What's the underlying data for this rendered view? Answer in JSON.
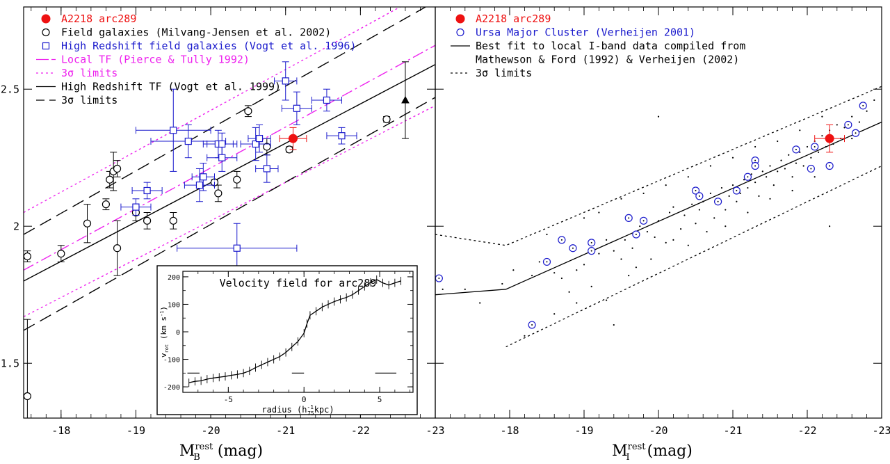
{
  "colors": {
    "black": "#000000",
    "red": "#ee1111",
    "blue": "#1a1acc",
    "magenta": "#ee22ee",
    "background": "#ffffff"
  },
  "chart_data": [
    {
      "id": "left",
      "type": "scatter",
      "xlabel_main": "M",
      "xlabel_sub": "B",
      "xlabel_sup": "rest",
      "xlabel_tail": " (mag)",
      "xlim": [
        -17.5,
        -23.0
      ],
      "ylim": [
        1.3,
        2.8
      ],
      "xticks": [
        "-18",
        "-19",
        "-20",
        "-21",
        "-22",
        "-23"
      ],
      "yticks": [
        "1.5",
        "2",
        "2.5"
      ],
      "legend_position": "top-left",
      "legend": [
        {
          "key": "arc",
          "label": "A2218 arc289",
          "marker": "filled-circle",
          "color": "#ee1111"
        },
        {
          "key": "field",
          "label": "Field galaxies (Milvang-Jensen et al. 2002)",
          "marker": "open-circle",
          "color": "#000000"
        },
        {
          "key": "hiz",
          "label": "High Redshift field galaxies (Vogt et al. 1996)",
          "marker": "open-square",
          "color": "#1a1acc"
        },
        {
          "key": "localtf",
          "label": "Local TF (Pierce & Tully 1992)",
          "marker": "long-dash",
          "color": "#ee22ee"
        },
        {
          "key": "localtf3",
          "label": "3σ limits",
          "marker": "dotted",
          "color": "#ee22ee"
        },
        {
          "key": "hiztf",
          "label": "High Redshift TF (Vogt et al. 1999)",
          "marker": "solid",
          "color": "#000000"
        },
        {
          "key": "hiztf3",
          "label": "3σ limits",
          "marker": "dashed",
          "color": "#000000"
        }
      ],
      "lines": [
        {
          "name": "Local TF (Pierce & Tully 1992)",
          "style": "longdash",
          "color": "#ee22ee",
          "x": [
            -17.5,
            -23.0
          ],
          "y": [
            1.84,
            2.66
          ]
        },
        {
          "name": "Local TF 3σ upper",
          "style": "dotted",
          "color": "#ee22ee",
          "x": [
            -17.5,
            -23.0
          ],
          "y": [
            2.05,
            2.87
          ]
        },
        {
          "name": "Local TF 3σ lower",
          "style": "dotted",
          "color": "#ee22ee",
          "x": [
            -17.5,
            -23.0
          ],
          "y": [
            1.67,
            2.44
          ]
        },
        {
          "name": "High Redshift TF (Vogt et al. 1999)",
          "style": "solid",
          "color": "#000000",
          "x": [
            -17.5,
            -23.0
          ],
          "y": [
            1.8,
            2.59
          ]
        },
        {
          "name": "High Redshift TF 3σ upper",
          "style": "dashed",
          "color": "#000000",
          "x": [
            -17.5,
            -23.0
          ],
          "y": [
            1.97,
            2.82
          ]
        },
        {
          "name": "High Redshift TF 3σ lower",
          "style": "dashed",
          "color": "#000000",
          "x": [
            -17.5,
            -23.0
          ],
          "y": [
            1.62,
            2.47
          ]
        }
      ],
      "series": [
        {
          "key": "field",
          "marker": "open-circle",
          "color": "#000000",
          "points": [
            {
              "x": -17.55,
              "y": 1.38,
              "ey": 0.28
            },
            {
              "x": -17.55,
              "y": 1.89,
              "ey": 0.02
            },
            {
              "x": -18.0,
              "y": 1.9,
              "ey": 0.03
            },
            {
              "x": -18.35,
              "y": 2.01,
              "ey": 0.07
            },
            {
              "x": -18.65,
              "y": 2.17,
              "ey": 0.03
            },
            {
              "x": -18.7,
              "y": 2.2,
              "ey": 0.07
            },
            {
              "x": -18.75,
              "y": 2.21,
              "ey": 0.03
            },
            {
              "x": -18.6,
              "y": 2.08,
              "ey": 0.02
            },
            {
              "x": -18.75,
              "y": 1.92,
              "ey": 0.1
            },
            {
              "x": -19.0,
              "y": 2.05,
              "ey": 0.03
            },
            {
              "x": -19.15,
              "y": 2.02,
              "ey": 0.03
            },
            {
              "x": -19.5,
              "y": 2.02,
              "ey": 0.03
            },
            {
              "x": -20.05,
              "y": 2.16,
              "ey": 0.01
            },
            {
              "x": -20.1,
              "y": 2.12,
              "ey": 0.03
            },
            {
              "x": -20.35,
              "y": 2.17,
              "ey": 0.03
            },
            {
              "x": -20.5,
              "y": 2.42,
              "ey": 0.02
            },
            {
              "x": -20.75,
              "y": 2.29,
              "ey": 0.03
            },
            {
              "x": -21.05,
              "y": 2.28,
              "ey": 0.01
            },
            {
              "x": -22.35,
              "y": 2.39,
              "ey": 0.01
            }
          ]
        },
        {
          "key": "field-triangle",
          "marker": "open-triangle",
          "color": "#000000",
          "points": [
            {
              "x": -22.6,
              "y": 2.46,
              "ey": 0.14
            }
          ]
        },
        {
          "key": "hiz",
          "marker": "open-square",
          "color": "#1a1acc",
          "points": [
            {
              "x": -19.0,
              "y": 2.07,
              "ex": 0.2,
              "ey": 0.03
            },
            {
              "x": -19.15,
              "y": 2.13,
              "ex": 0.2,
              "ey": 0.03
            },
            {
              "x": -19.5,
              "y": 2.35,
              "ex": 0.5,
              "ey": 0.15
            },
            {
              "x": -19.7,
              "y": 2.31,
              "ex": 0.5,
              "ey": 0.06
            },
            {
              "x": -19.85,
              "y": 2.15,
              "ex": 0.2,
              "ey": 0.06
            },
            {
              "x": -19.9,
              "y": 2.18,
              "ex": 0.15,
              "ey": 0.05
            },
            {
              "x": -20.1,
              "y": 2.3,
              "ex": 0.2,
              "ey": 0.05
            },
            {
              "x": -20.15,
              "y": 2.25,
              "ex": 0.2,
              "ey": 0.05
            },
            {
              "x": -20.15,
              "y": 2.3,
              "ex": 0.2,
              "ey": 0.04
            },
            {
              "x": -20.6,
              "y": 2.3,
              "ex": 0.2,
              "ey": 0.06
            },
            {
              "x": -20.65,
              "y": 2.32,
              "ex": 0.15,
              "ey": 0.05
            },
            {
              "x": -20.75,
              "y": 2.21,
              "ex": 0.15,
              "ey": 0.05
            },
            {
              "x": -21.0,
              "y": 2.53,
              "ex": 0.15,
              "ey": 0.07
            },
            {
              "x": -21.15,
              "y": 2.43,
              "ex": 0.2,
              "ey": 0.06
            },
            {
              "x": -21.55,
              "y": 2.46,
              "ex": 0.2,
              "ey": 0.04
            },
            {
              "x": -21.75,
              "y": 2.33,
              "ex": 0.2,
              "ey": 0.03
            },
            {
              "x": -20.35,
              "y": 1.92,
              "ex": 0.8,
              "ey": 0.09
            }
          ]
        },
        {
          "key": "arc",
          "marker": "filled-circle",
          "color": "#ee1111",
          "points": [
            {
              "x": -21.1,
              "y": 2.32,
              "ex": 0.18,
              "ey": 0.04
            }
          ]
        }
      ]
    },
    {
      "id": "right",
      "type": "scatter",
      "xlabel_main": "M",
      "xlabel_sub": "I",
      "xlabel_sup": "rest",
      "xlabel_tail": " (mag)",
      "xlim": [
        -17.0,
        -23.0
      ],
      "ylim": [
        1.3,
        2.8
      ],
      "xticks": [
        "-18",
        "-19",
        "-20",
        "-21",
        "-22",
        "-23"
      ],
      "legend_position": "top-left",
      "legend": [
        {
          "key": "arc",
          "label": "A2218 arc289",
          "marker": "filled-circle",
          "color": "#ee1111"
        },
        {
          "key": "uma",
          "label": "Ursa Major Cluster (Verheijen 2001)",
          "marker": "open-circle",
          "color": "#1a1acc"
        },
        {
          "key": "fit",
          "label": "Best fit to local I-band data compiled from",
          "marker": "solid",
          "color": "#000000"
        },
        {
          "key": "fit2",
          "label": "Mathewson & Ford (1992) & Verheijen (2002)",
          "marker": "none",
          "color": "#000000"
        },
        {
          "key": "lim",
          "label": "3σ limits",
          "marker": "dotted",
          "color": "#000000"
        }
      ],
      "lines": [
        {
          "name": "Best fit to local I-band data",
          "style": "solid",
          "color": "#000000",
          "x": [
            -17.0,
            -17.95,
            -23.0
          ],
          "y": [
            1.75,
            1.77,
            2.38
          ]
        },
        {
          "name": "3σ upper",
          "style": "dotted",
          "color": "#000000",
          "x": [
            -17.0,
            -17.95,
            -23.0
          ],
          "y": [
            1.97,
            1.93,
            2.51
          ]
        },
        {
          "name": "3σ lower",
          "style": "dotted",
          "color": "#000000",
          "x": [
            -17.95,
            -23.0
          ],
          "y": [
            1.56,
            2.22
          ]
        }
      ],
      "series": [
        {
          "key": "uma",
          "marker": "open-circle",
          "color": "#1a1acc",
          "points": [
            {
              "x": -17.05,
              "y": 1.81
            },
            {
              "x": -18.3,
              "y": 1.64
            },
            {
              "x": -18.5,
              "y": 1.87
            },
            {
              "x": -18.7,
              "y": 1.95
            },
            {
              "x": -18.85,
              "y": 1.92
            },
            {
              "x": -19.1,
              "y": 1.94
            },
            {
              "x": -19.1,
              "y": 1.91
            },
            {
              "x": -19.6,
              "y": 2.03
            },
            {
              "x": -19.7,
              "y": 1.97
            },
            {
              "x": -19.8,
              "y": 2.02
            },
            {
              "x": -20.5,
              "y": 2.13
            },
            {
              "x": -20.55,
              "y": 2.11
            },
            {
              "x": -20.8,
              "y": 2.09
            },
            {
              "x": -21.05,
              "y": 2.13
            },
            {
              "x": -21.2,
              "y": 2.18
            },
            {
              "x": -21.3,
              "y": 2.24
            },
            {
              "x": -21.3,
              "y": 2.22
            },
            {
              "x": -21.85,
              "y": 2.28
            },
            {
              "x": -22.05,
              "y": 2.21
            },
            {
              "x": -22.1,
              "y": 2.29
            },
            {
              "x": -22.3,
              "y": 2.22
            },
            {
              "x": -22.55,
              "y": 2.37
            },
            {
              "x": -22.65,
              "y": 2.34
            },
            {
              "x": -22.75,
              "y": 2.44
            }
          ]
        },
        {
          "key": "arc",
          "marker": "filled-circle",
          "color": "#ee1111",
          "points": [
            {
              "x": -22.3,
              "y": 2.32,
              "ex": 0.2,
              "ey": 0.05
            }
          ]
        }
      ]
    },
    {
      "id": "inset",
      "type": "line",
      "title": "Velocity field for arc289",
      "xlabel_main": "radius (h",
      "xlabel_sub": "75",
      "xlabel_sup": "-1",
      "xlabel_tail": "kpc)",
      "ylabel_main": "v",
      "ylabel_sub": "rot",
      "ylabel_tail": " (km s",
      "ylabel_sup": "-1",
      "ylabel_end": ")",
      "xlim": [
        -8.0,
        7.2
      ],
      "ylim": [
        -220,
        220
      ],
      "xticks": [
        "-5",
        "0",
        "5"
      ],
      "yticks": [
        "-200",
        "-100",
        "0",
        "100",
        "200"
      ],
      "x": [
        -7.6,
        -7.2,
        -6.8,
        -6.4,
        -6.0,
        -5.6,
        -5.2,
        -4.8,
        -4.4,
        -4.0,
        -3.6,
        -3.2,
        -2.8,
        -2.4,
        -2.0,
        -1.6,
        -1.2,
        -0.8,
        -0.4,
        0.0,
        0.2,
        0.4,
        0.8,
        1.2,
        1.6,
        2.0,
        2.4,
        2.8,
        3.2,
        3.6,
        4.0,
        4.4,
        4.8,
        5.2,
        5.6,
        6.0,
        6.4
      ],
      "y": [
        -185,
        -180,
        -178,
        -172,
        -168,
        -165,
        -162,
        -158,
        -155,
        -150,
        -142,
        -130,
        -120,
        -110,
        -100,
        -90,
        -75,
        -55,
        -35,
        -5,
        30,
        60,
        75,
        90,
        100,
        110,
        118,
        125,
        135,
        150,
        165,
        180,
        190,
        178,
        170,
        178,
        185
      ],
      "ey": 15,
      "resolution_bars": [
        {
          "x1": -7.7,
          "x2": -6.9,
          "y": -150
        },
        {
          "x1": -0.8,
          "x2": 0.0,
          "y": -150
        },
        {
          "x1": 4.7,
          "x2": 6.1,
          "y": -150
        }
      ]
    }
  ],
  "left_dots": [],
  "right_scatter_points": [
    [
      -17.1,
      1.77
    ],
    [
      -17.4,
      1.77
    ],
    [
      -17.6,
      1.72
    ],
    [
      -17.9,
      1.79
    ],
    [
      -18.05,
      1.84
    ],
    [
      -18.3,
      1.82
    ],
    [
      -18.4,
      1.87
    ],
    [
      -18.6,
      1.83
    ],
    [
      -18.7,
      1.81
    ],
    [
      -18.8,
      1.76
    ],
    [
      -18.9,
      1.84
    ],
    [
      -19.0,
      1.86
    ],
    [
      -19.2,
      1.9
    ],
    [
      -19.3,
      1.95
    ],
    [
      -19.4,
      1.91
    ],
    [
      -19.5,
      1.88
    ],
    [
      -19.55,
      1.95
    ],
    [
      -19.65,
      1.92
    ],
    [
      -19.7,
      1.85
    ],
    [
      -19.75,
      2.0
    ],
    [
      -19.85,
      1.98
    ],
    [
      -19.95,
      1.96
    ],
    [
      -20.0,
      2.02
    ],
    [
      -20.1,
      1.94
    ],
    [
      -20.15,
      2.05
    ],
    [
      -20.2,
      2.07
    ],
    [
      -20.3,
      1.99
    ],
    [
      -20.35,
      2.04
    ],
    [
      -20.45,
      2.08
    ],
    [
      -20.5,
      2.01
    ],
    [
      -20.55,
      2.06
    ],
    [
      -20.6,
      2.09
    ],
    [
      -20.7,
      2.12
    ],
    [
      -20.75,
      2.03
    ],
    [
      -20.8,
      2.1
    ],
    [
      -20.85,
      2.14
    ],
    [
      -20.9,
      2.06
    ],
    [
      -20.95,
      2.11
    ],
    [
      -21.0,
      2.15
    ],
    [
      -21.05,
      2.09
    ],
    [
      -21.1,
      2.12
    ],
    [
      -21.15,
      2.17
    ],
    [
      -21.2,
      2.14
    ],
    [
      -21.25,
      2.19
    ],
    [
      -21.3,
      2.16
    ],
    [
      -21.35,
      2.11
    ],
    [
      -21.4,
      2.2
    ],
    [
      -21.45,
      2.18
    ],
    [
      -21.5,
      2.22
    ],
    [
      -21.55,
      2.15
    ],
    [
      -21.6,
      2.2
    ],
    [
      -21.65,
      2.24
    ],
    [
      -21.7,
      2.21
    ],
    [
      -21.75,
      2.26
    ],
    [
      -21.8,
      2.18
    ],
    [
      -21.85,
      2.23
    ],
    [
      -21.9,
      2.27
    ],
    [
      -21.95,
      2.22
    ],
    [
      -22.0,
      2.29
    ],
    [
      -22.05,
      2.25
    ],
    [
      -22.1,
      2.31
    ],
    [
      -22.15,
      2.27
    ],
    [
      -22.2,
      2.33
    ],
    [
      -22.25,
      2.29
    ],
    [
      -22.3,
      2.35
    ],
    [
      -22.35,
      2.3
    ],
    [
      -22.4,
      2.37
    ],
    [
      -22.45,
      2.32
    ],
    [
      -22.5,
      2.36
    ],
    [
      -22.6,
      2.4
    ],
    [
      -22.7,
      2.38
    ],
    [
      -22.8,
      2.42
    ],
    [
      -22.9,
      2.46
    ],
    [
      -18.6,
      1.68
    ],
    [
      -18.9,
      1.72
    ],
    [
      -19.1,
      1.78
    ],
    [
      -19.3,
      1.73
    ],
    [
      -19.6,
      1.82
    ],
    [
      -19.9,
      1.88
    ],
    [
      -20.2,
      1.95
    ],
    [
      -20.4,
      1.93
    ],
    [
      -20.65,
      1.98
    ],
    [
      -20.9,
      2.0
    ],
    [
      -21.2,
      2.05
    ],
    [
      -21.5,
      2.1
    ],
    [
      -21.8,
      2.13
    ],
    [
      -22.1,
      2.18
    ],
    [
      -19.2,
      2.05
    ],
    [
      -19.5,
      2.1
    ],
    [
      -19.8,
      2.12
    ],
    [
      -20.1,
      2.15
    ],
    [
      -20.4,
      2.18
    ],
    [
      -20.7,
      2.22
    ],
    [
      -21.0,
      2.25
    ],
    [
      -21.3,
      2.29
    ],
    [
      -21.6,
      2.31
    ],
    [
      -21.9,
      2.35
    ],
    [
      -22.2,
      2.4
    ],
    [
      -18.5,
      1.97
    ],
    [
      -19.0,
      2.03
    ],
    [
      -20.0,
      2.4
    ],
    [
      -22.3,
      2.0
    ],
    [
      -22.6,
      2.32
    ],
    [
      -18.2,
      1.6
    ],
    [
      -19.4,
      1.64
    ]
  ]
}
